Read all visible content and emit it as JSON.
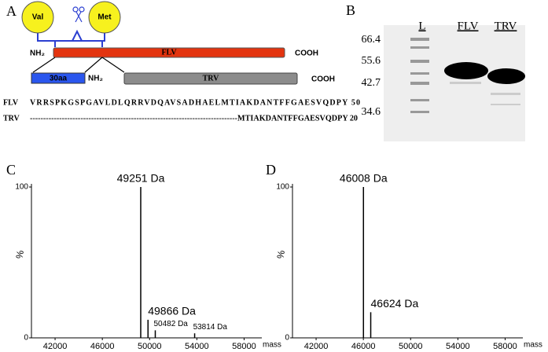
{
  "panels": {
    "a": "A",
    "b": "B",
    "c": "C",
    "d": "D"
  },
  "diagram": {
    "val": "Val",
    "met": "Met",
    "nh2_top": "NH₂",
    "flv": "FLV",
    "cooh_top": "COOH",
    "aa30": "30aa",
    "nh2_bottom": "NH₂",
    "trv": "TRV",
    "cooh_bottom": "COOH"
  },
  "sequence": {
    "rows": [
      [
        "FLV",
        "VRRSPKGSPGAVLDLQRRVDQAVSADHAELMTIAKDANTFFGAESVQDPY 50"
      ],
      [
        "TRV",
        "------------------------------------------------------------------------------MTIAKDANTFFGAESVQDPY 20"
      ]
    ]
  },
  "gel": {
    "lanes": [
      "L",
      "FLV",
      "TRV"
    ],
    "markers": [
      "66.4",
      "55.6",
      "42.7",
      "34.6"
    ]
  },
  "chart_data": [
    {
      "type": "spectrum",
      "x": [
        49251,
        49866,
        50482,
        53814
      ],
      "values": [
        100,
        12,
        5,
        3
      ],
      "peak_labels": [
        "49251 Da",
        "49866 Da",
        "50482 Da",
        "53814 Da"
      ],
      "xlabel": "mass",
      "ylabel": "%",
      "xlim": [
        40000,
        59500
      ],
      "ylim": [
        0,
        100
      ],
      "xticks": [
        42000,
        46000,
        50000,
        54000,
        58000
      ],
      "yticks": [
        0,
        100
      ],
      "color": "#000000"
    },
    {
      "type": "spectrum",
      "x": [
        46008,
        46624
      ],
      "values": [
        100,
        17
      ],
      "peak_labels": [
        "46008 Da",
        "46624 Da"
      ],
      "xlabel": "mass",
      "ylabel": "%",
      "xlim": [
        40000,
        59500
      ],
      "ylim": [
        0,
        100
      ],
      "xticks": [
        42000,
        46000,
        50000,
        54000,
        58000
      ],
      "yticks": [
        0,
        100
      ],
      "color": "#000000"
    }
  ]
}
